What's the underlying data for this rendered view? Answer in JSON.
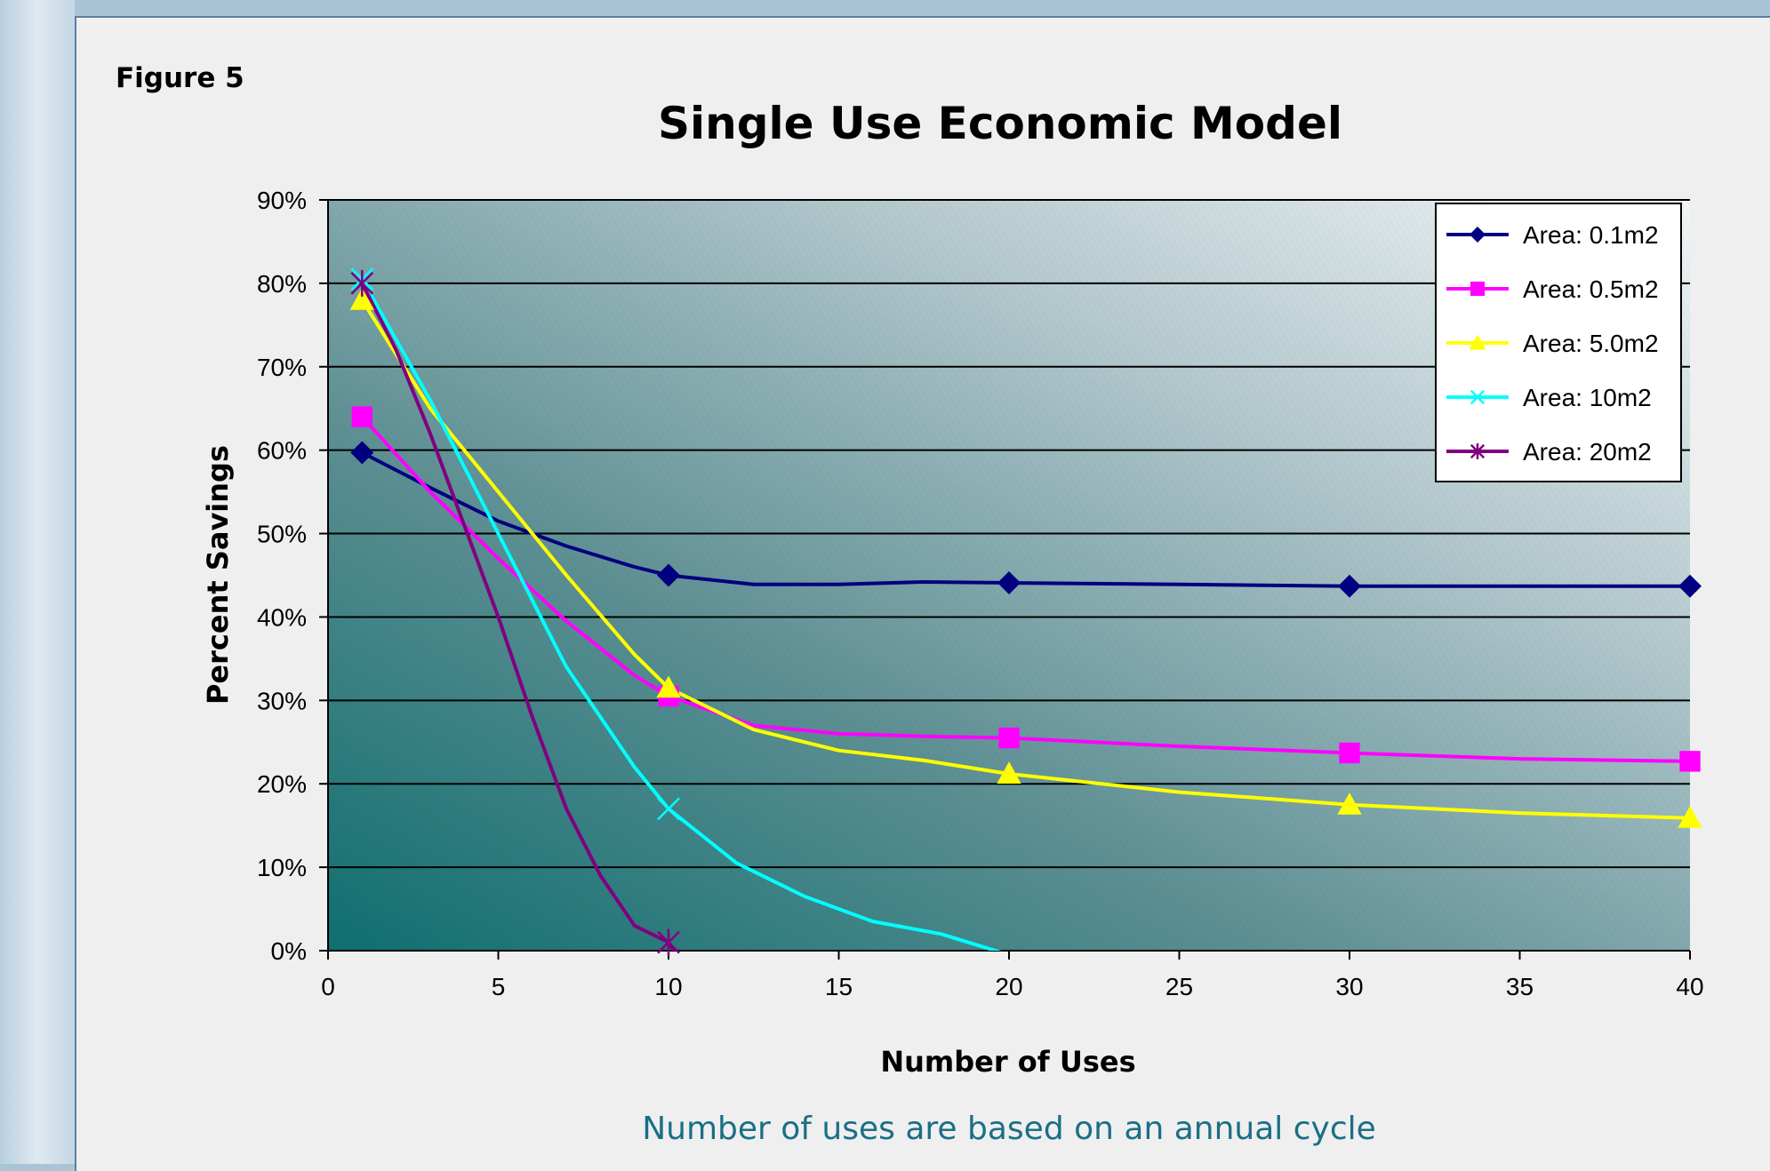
{
  "figure_label": "Figure 5",
  "caption": "Number of uses are based on an annual cycle",
  "chart_data": {
    "type": "line",
    "title": "Single Use Economic Model",
    "xlabel": "Number of Uses",
    "ylabel": "Percent Savings",
    "xlim": [
      0,
      40
    ],
    "ylim": [
      0,
      90
    ],
    "x_ticks": [
      0,
      5,
      10,
      15,
      20,
      25,
      30,
      35,
      40
    ],
    "y_ticks": [
      0,
      10,
      20,
      30,
      40,
      50,
      60,
      70,
      80,
      90
    ],
    "y_tick_labels": [
      "0%",
      "10%",
      "20%",
      "30%",
      "40%",
      "50%",
      "60%",
      "70%",
      "80%",
      "90%"
    ],
    "grid": "horizontal",
    "legend_position": "top-right",
    "series": [
      {
        "name": "Area: 0.1m2",
        "color": "#000080",
        "marker": "diamond",
        "marker_x": [
          1,
          10,
          20,
          30,
          40
        ],
        "x": [
          1,
          3,
          5,
          7,
          9,
          10,
          12.5,
          15,
          17.5,
          20,
          25,
          30,
          35,
          40
        ],
        "y": [
          59.7,
          55.5,
          51.5,
          48.5,
          46,
          45,
          43.9,
          43.9,
          44.2,
          44.1,
          43.9,
          43.7,
          43.7,
          43.7
        ]
      },
      {
        "name": "Area: 0.5m2",
        "color": "#ff00ff",
        "marker": "square",
        "marker_x": [
          1,
          10,
          20,
          30,
          40
        ],
        "x": [
          1,
          3,
          5,
          7,
          9,
          10,
          12.5,
          15,
          17.5,
          20,
          25,
          30,
          35,
          40
        ],
        "y": [
          64,
          55,
          47,
          39.5,
          33,
          30.5,
          27,
          26,
          25.7,
          25.5,
          24.5,
          23.7,
          23,
          22.7
        ]
      },
      {
        "name": "Area: 5.0m2",
        "color": "#ffff00",
        "marker": "triangle",
        "marker_x": [
          1,
          10,
          20,
          30,
          40
        ],
        "x": [
          1,
          3,
          5,
          7,
          9,
          10,
          12.5,
          15,
          17.5,
          20,
          25,
          30,
          35,
          40
        ],
        "y": [
          78,
          65,
          55,
          45,
          35.5,
          31.5,
          26.5,
          24,
          22.8,
          21.2,
          19,
          17.5,
          16.5,
          15.9
        ]
      },
      {
        "name": "Area: 10m2",
        "color": "#00ffff",
        "marker": "x",
        "marker_x": [
          1,
          10
        ],
        "x": [
          1,
          3,
          5,
          7,
          9,
          10,
          12,
          14,
          16,
          18,
          20,
          21.4
        ],
        "y": [
          80.5,
          66,
          50,
          34,
          22,
          17,
          10.5,
          6.5,
          3.5,
          2,
          -0.5,
          -1.5
        ]
      },
      {
        "name": "Area: 20m2",
        "color": "#800080",
        "marker": "star",
        "marker_x": [
          1,
          10
        ],
        "x": [
          1,
          2,
          3,
          4,
          5,
          6,
          7,
          8,
          9,
          10,
          10.4
        ],
        "y": [
          80,
          72,
          62,
          51,
          40,
          28,
          17,
          9,
          3,
          1,
          -1.5
        ]
      }
    ]
  }
}
